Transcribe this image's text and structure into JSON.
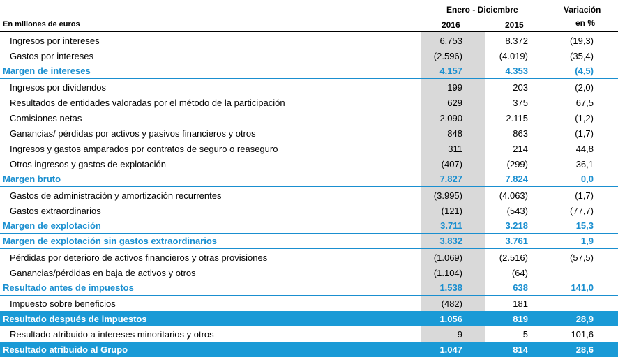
{
  "header": {
    "period_label": "Enero - Diciembre",
    "variation_label": "Variación",
    "variation_unit": "en %",
    "units_label": "En millones de euros",
    "year_2016": "2016",
    "year_2015": "2015"
  },
  "rows": [
    {
      "label": "Ingresos por intereses",
      "v2016": "6.753",
      "v2015": "8.372",
      "var": "(19,3)"
    },
    {
      "label": "Gastos por intereses",
      "v2016": "(2.596)",
      "v2015": "(4.019)",
      "var": "(35,4)"
    },
    {
      "label": "Margen de intereses",
      "v2016": "4.157",
      "v2015": "4.353",
      "var": "(4,5)"
    },
    {
      "label": "Ingresos por dividendos",
      "v2016": "199",
      "v2015": "203",
      "var": "(2,0)"
    },
    {
      "label": "Resultados de entidades valoradas por el método de la participación",
      "v2016": "629",
      "v2015": "375",
      "var": "67,5"
    },
    {
      "label": "Comisiones netas",
      "v2016": "2.090",
      "v2015": "2.115",
      "var": "(1,2)"
    },
    {
      "label": "Ganancias/ pérdidas por activos y pasivos financieros y otros",
      "v2016": "848",
      "v2015": "863",
      "var": "(1,7)"
    },
    {
      "label": "Ingresos y gastos amparados por contratos de seguro o reaseguro",
      "v2016": "311",
      "v2015": "214",
      "var": "44,8"
    },
    {
      "label": "Otros ingresos y gastos de explotación",
      "v2016": "(407)",
      "v2015": "(299)",
      "var": "36,1"
    },
    {
      "label": "Margen bruto",
      "v2016": "7.827",
      "v2015": "7.824",
      "var": "0,0"
    },
    {
      "label": "Gastos de administración y amortización recurrentes",
      "v2016": "(3.995)",
      "v2015": "(4.063)",
      "var": "(1,7)"
    },
    {
      "label": "Gastos extraordinarios",
      "v2016": "(121)",
      "v2015": "(543)",
      "var": "(77,7)"
    },
    {
      "label": "Margen de explotación",
      "v2016": "3.711",
      "v2015": "3.218",
      "var": "15,3"
    },
    {
      "label": "Margen de explotación sin gastos extraordinarios",
      "v2016": "3.832",
      "v2015": "3.761",
      "var": "1,9"
    },
    {
      "label": "Pérdidas por deterioro de activos financieros y otras provisiones",
      "v2016": "(1.069)",
      "v2015": "(2.516)",
      "var": "(57,5)"
    },
    {
      "label": "Ganancias/pérdidas en baja de activos y otros",
      "v2016": "(1.104)",
      "v2015": "(64)",
      "var": ""
    },
    {
      "label": "Resultado antes de impuestos",
      "v2016": "1.538",
      "v2015": "638",
      "var": "141,0"
    },
    {
      "label": "Impuesto sobre beneficios",
      "v2016": "(482)",
      "v2015": "181",
      "var": ""
    },
    {
      "label": "Resultado después de impuestos",
      "v2016": "1.056",
      "v2015": "819",
      "var": "28,9"
    },
    {
      "label": "Resultado atribuido a intereses minoritarios y otros",
      "v2016": "9",
      "v2015": "5",
      "var": "101,6"
    },
    {
      "label": "Resultado atribuido al Grupo",
      "v2016": "1.047",
      "v2015": "814",
      "var": "28,6"
    }
  ]
}
